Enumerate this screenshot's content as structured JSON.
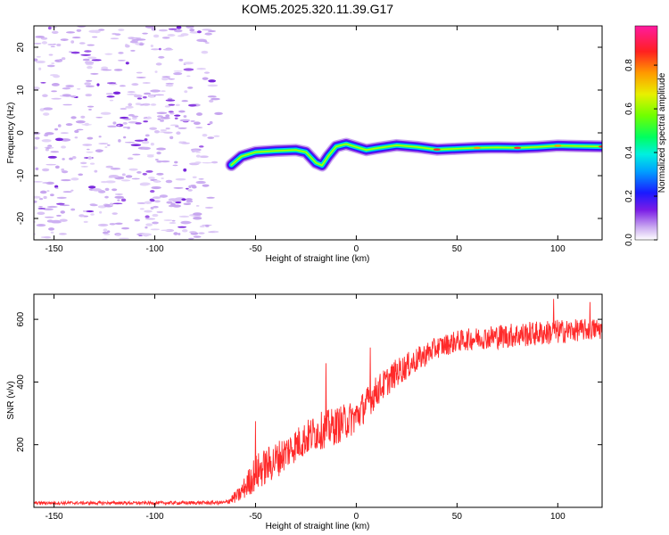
{
  "title": "KOM5.2025.320.11.39.G17",
  "chart_data": [
    {
      "type": "heatmap",
      "name": "spectrogram",
      "xlabel": "Height of straight line (km)",
      "ylabel": "Frequency (Hz)",
      "xlim": [
        -160,
        122
      ],
      "ylim": [
        -25,
        25
      ],
      "xticks": [
        -150,
        -100,
        -50,
        0,
        50,
        100
      ],
      "yticks": [
        -20,
        -10,
        0,
        10,
        20
      ],
      "colorbar": {
        "label": "Normalized spectral amplitude",
        "range": [
          0,
          0.98
        ],
        "ticks": [
          0.0,
          0.2,
          0.4,
          0.6,
          0.8
        ]
      },
      "noise_region_x": [
        -160,
        -65
      ],
      "signal_trace": [
        {
          "x": -62,
          "y": -7.5
        },
        {
          "x": -57,
          "y": -5.5
        },
        {
          "x": -50,
          "y": -4.5
        },
        {
          "x": -40,
          "y": -4.2
        },
        {
          "x": -30,
          "y": -4.0
        },
        {
          "x": -25,
          "y": -4.5
        },
        {
          "x": -20,
          "y": -7.0
        },
        {
          "x": -17,
          "y": -7.6
        },
        {
          "x": -14,
          "y": -5.5
        },
        {
          "x": -10,
          "y": -3.2
        },
        {
          "x": -5,
          "y": -2.6
        },
        {
          "x": 0,
          "y": -3.3
        },
        {
          "x": 5,
          "y": -4.0
        },
        {
          "x": 10,
          "y": -3.6
        },
        {
          "x": 20,
          "y": -2.9
        },
        {
          "x": 30,
          "y": -3.3
        },
        {
          "x": 40,
          "y": -3.9
        },
        {
          "x": 50,
          "y": -3.7
        },
        {
          "x": 60,
          "y": -3.5
        },
        {
          "x": 70,
          "y": -3.4
        },
        {
          "x": 80,
          "y": -3.5
        },
        {
          "x": 90,
          "y": -3.3
        },
        {
          "x": 100,
          "y": -3.0
        },
        {
          "x": 110,
          "y": -3.1
        },
        {
          "x": 122,
          "y": -3.2
        }
      ]
    },
    {
      "type": "line",
      "name": "snr",
      "xlabel": "Height of straight line (km)",
      "ylabel": "SNR (v/v)",
      "xlim": [
        -160,
        122
      ],
      "ylim": [
        0,
        680
      ],
      "xticks": [
        -150,
        -100,
        -50,
        0,
        50,
        100
      ],
      "yticks": [
        200,
        400,
        600
      ],
      "series_color": "#ff2a2a",
      "envelope": [
        {
          "x": -160,
          "mean": 14,
          "spread": 5
        },
        {
          "x": -100,
          "mean": 14,
          "spread": 5
        },
        {
          "x": -65,
          "mean": 15,
          "spread": 6
        },
        {
          "x": -58,
          "mean": 40,
          "spread": 25
        },
        {
          "x": -50,
          "mean": 110,
          "spread": 60
        },
        {
          "x": -40,
          "mean": 150,
          "spread": 60
        },
        {
          "x": -30,
          "mean": 200,
          "spread": 55
        },
        {
          "x": -20,
          "mean": 240,
          "spread": 60
        },
        {
          "x": -10,
          "mean": 260,
          "spread": 60
        },
        {
          "x": 0,
          "mean": 290,
          "spread": 55
        },
        {
          "x": 10,
          "mean": 370,
          "spread": 50
        },
        {
          "x": 20,
          "mean": 430,
          "spread": 45
        },
        {
          "x": 30,
          "mean": 470,
          "spread": 40
        },
        {
          "x": 40,
          "mean": 510,
          "spread": 35
        },
        {
          "x": 50,
          "mean": 530,
          "spread": 35
        },
        {
          "x": 60,
          "mean": 540,
          "spread": 35
        },
        {
          "x": 70,
          "mean": 545,
          "spread": 40
        },
        {
          "x": 80,
          "mean": 550,
          "spread": 40
        },
        {
          "x": 90,
          "mean": 555,
          "spread": 40
        },
        {
          "x": 100,
          "mean": 560,
          "spread": 40
        },
        {
          "x": 110,
          "mean": 565,
          "spread": 35
        },
        {
          "x": 122,
          "mean": 570,
          "spread": 35
        }
      ],
      "spikes": [
        {
          "x": -50,
          "y": 275
        },
        {
          "x": -15,
          "y": 460
        },
        {
          "x": 7,
          "y": 510
        },
        {
          "x": 98,
          "y": 665
        },
        {
          "x": 116,
          "y": 655
        }
      ]
    }
  ]
}
